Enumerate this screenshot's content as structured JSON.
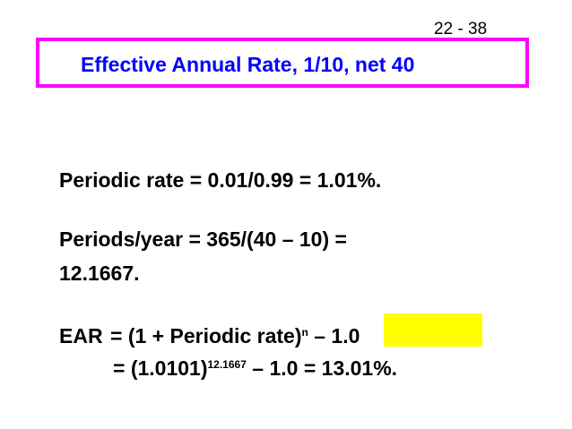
{
  "slide_number": "22 - 38",
  "title": "Effective Annual Rate, 1/10, net 40",
  "colors": {
    "title_text": "#0000ff",
    "title_border": "#ff00ff",
    "highlight": "#ffff00"
  },
  "body": {
    "periodic_rate": "Periodic rate = 0.01/0.99 = 1.01%.",
    "periods_line_1": "Periods/year = 365/(40 – 10) =",
    "periods_line_2": "12.1667.",
    "ear_label": "EAR",
    "ear_line_1_prefix": "= (1 + Periodic rate)",
    "ear_line_1_exponent": "n",
    "ear_line_1_suffix": " – 1.0",
    "ear_line_2_prefix": "= (1.0101)",
    "ear_line_2_exponent": "12.1667",
    "ear_line_2_suffix": " – 1.0 = 13.01%."
  }
}
